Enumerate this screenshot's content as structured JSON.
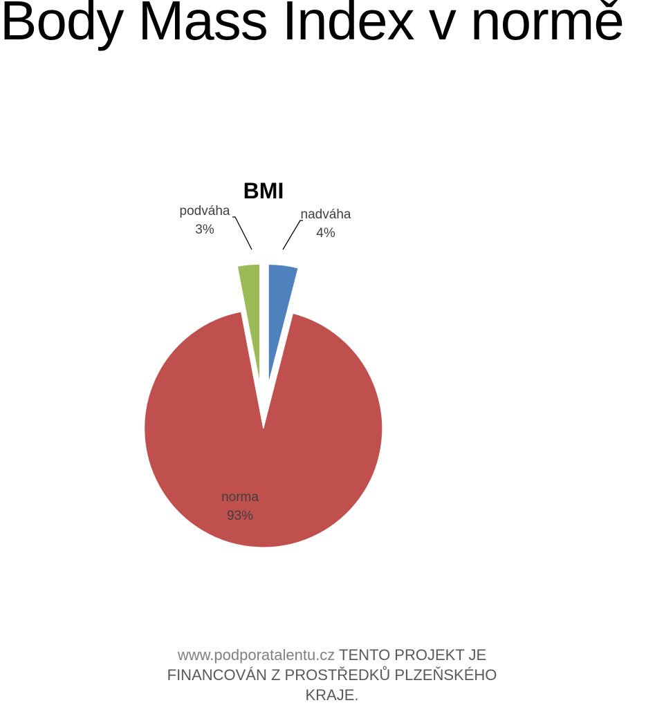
{
  "page": {
    "title": "Body Mass Index v normě"
  },
  "chart_data": {
    "type": "pie",
    "title": "BMI",
    "slices": [
      {
        "label": "nadváha",
        "value": 4,
        "value_label": "4%",
        "color": "#4f81bd",
        "exploded": true
      },
      {
        "label": "norma",
        "value": 93,
        "value_label": "93%",
        "color": "#c0504d",
        "exploded": true
      },
      {
        "label": "podváha",
        "value": 3,
        "value_label": "3%",
        "color": "#9bbb59",
        "exploded": true
      }
    ],
    "legend": "none",
    "label_connectors": [
      "podváha",
      "nadváha"
    ]
  },
  "footer": {
    "url": "www.podporatalentu.cz",
    "text": "TENTO PROJEKT JE FINANCOVÁN Z PROSTŘEDKŮ PLZEŇSKÉHO KRAJE."
  }
}
